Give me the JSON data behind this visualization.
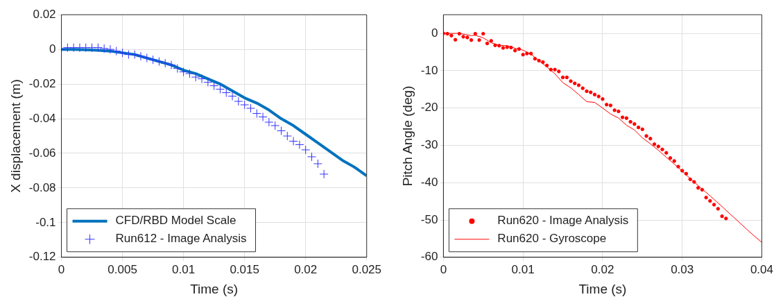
{
  "chart_data": [
    {
      "type": "line",
      "xlabel": "Time (s)",
      "ylabel": "X displacement (m)",
      "xlim": [
        0,
        0.025
      ],
      "xticks": [
        0,
        0.005,
        0.01,
        0.015,
        0.02,
        0.025
      ],
      "ylim": [
        -0.12,
        0.02
      ],
      "yticks": [
        -0.12,
        -0.1,
        -0.08,
        -0.06,
        -0.04,
        -0.02,
        0,
        0.02
      ],
      "grid": true,
      "legend": "bottom left",
      "series": [
        {
          "name": "CFD/RBD Model Scale",
          "color": "#0072bd",
          "marker": "none",
          "line_style": "solid",
          "x": [
            0,
            0.001,
            0.002,
            0.003,
            0.004,
            0.005,
            0.006,
            0.007,
            0.008,
            0.009,
            0.01,
            0.011,
            0.012,
            0.013,
            0.014,
            0.015,
            0.016,
            0.017,
            0.018,
            0.019,
            0.02,
            0.021,
            0.022,
            0.023,
            0.024,
            0.025
          ],
          "values": [
            0,
            0,
            -0.0002,
            -0.0005,
            -0.001,
            -0.002,
            -0.003,
            -0.005,
            -0.007,
            -0.009,
            -0.012,
            -0.014,
            -0.017,
            -0.02,
            -0.024,
            -0.028,
            -0.031,
            -0.035,
            -0.04,
            -0.044,
            -0.049,
            -0.054,
            -0.059,
            -0.064,
            -0.068,
            -0.073
          ]
        },
        {
          "name": "Run612 - Image Analysis",
          "type": "scatter",
          "color": "#3333ff",
          "marker": "cross",
          "x": [
            0,
            0.0005,
            0.001,
            0.0015,
            0.002,
            0.0025,
            0.003,
            0.0035,
            0.004,
            0.0045,
            0.005,
            0.0055,
            0.006,
            0.0065,
            0.007,
            0.0075,
            0.008,
            0.0085,
            0.009,
            0.0095,
            0.01,
            0.0105,
            0.011,
            0.0115,
            0.012,
            0.0125,
            0.013,
            0.0135,
            0.014,
            0.0145,
            0.015,
            0.0155,
            0.016,
            0.0165,
            0.017,
            0.0175,
            0.018,
            0.0185,
            0.019,
            0.0195,
            0.02,
            0.0205,
            0.021,
            0.0215
          ],
          "values": [
            0,
            0.001,
            0.001,
            0.001,
            0.001,
            0.001,
            0.001,
            0.0005,
            0,
            -0.001,
            -0.002,
            -0.003,
            -0.003,
            -0.004,
            -0.005,
            -0.006,
            -0.007,
            -0.008,
            -0.009,
            -0.011,
            -0.013,
            -0.014,
            -0.016,
            -0.017,
            -0.019,
            -0.021,
            -0.023,
            -0.025,
            -0.027,
            -0.03,
            -0.032,
            -0.034,
            -0.037,
            -0.039,
            -0.042,
            -0.044,
            -0.047,
            -0.05,
            -0.053,
            -0.055,
            -0.058,
            -0.062,
            -0.066,
            -0.072
          ]
        }
      ]
    },
    {
      "type": "scatter",
      "xlabel": "Time (s)",
      "ylabel": "Pitch Angle (deg)",
      "xlim": [
        0,
        0.04
      ],
      "xticks": [
        0,
        0.01,
        0.02,
        0.03,
        0.04
      ],
      "ylim": [
        -60,
        5
      ],
      "yticks": [
        -60,
        -50,
        -40,
        -30,
        -20,
        -10,
        0
      ],
      "grid": true,
      "legend": "bottom left",
      "series": [
        {
          "name": "Run620 - Image Analysis",
          "color": "#ff0000",
          "marker": "circle",
          "x": [
            0,
            0.0005,
            0.001,
            0.0015,
            0.002,
            0.0025,
            0.003,
            0.0035,
            0.004,
            0.0045,
            0.005,
            0.0055,
            0.006,
            0.0065,
            0.007,
            0.0075,
            0.008,
            0.0085,
            0.009,
            0.0095,
            0.01,
            0.0105,
            0.011,
            0.0115,
            0.012,
            0.0125,
            0.013,
            0.0135,
            0.014,
            0.0145,
            0.015,
            0.0155,
            0.016,
            0.0165,
            0.017,
            0.0175,
            0.018,
            0.0185,
            0.019,
            0.0195,
            0.02,
            0.0205,
            0.021,
            0.0215,
            0.022,
            0.0225,
            0.023,
            0.0235,
            0.024,
            0.0245,
            0.025,
            0.0255,
            0.026,
            0.0265,
            0.027,
            0.0275,
            0.028,
            0.0285,
            0.029,
            0.0295,
            0.03,
            0.0305,
            0.031,
            0.0315,
            0.032,
            0.0325,
            0.033,
            0.0335,
            0.034,
            0.0345,
            0.035,
            0.0355
          ],
          "values": [
            0,
            -0.1,
            -0.6,
            -1.7,
            -0.1,
            -0.9,
            -1.1,
            -1.8,
            -0.1,
            -1.8,
            -0.1,
            -2.7,
            -2,
            -3.2,
            -3.3,
            -3.9,
            -3.7,
            -3.8,
            -4.6,
            -4.2,
            -5.7,
            -5.4,
            -5.4,
            -6.8,
            -7.3,
            -7.7,
            -8.6,
            -9.7,
            -9.7,
            -10.2,
            -11.8,
            -11.8,
            -12.8,
            -13.4,
            -13.9,
            -14.7,
            -15.5,
            -15.8,
            -16.4,
            -16.9,
            -17.6,
            -19.1,
            -19.3,
            -20.6,
            -20.9,
            -22.5,
            -22.7,
            -23.7,
            -24.3,
            -25.2,
            -25.7,
            -27.5,
            -28.2,
            -29.7,
            -30.3,
            -31.1,
            -32,
            -33.4,
            -34.2,
            -35.7,
            -36.8,
            -37.6,
            -39.1,
            -39.8,
            -41.4,
            -41.9,
            -44,
            -44.9,
            -45.9,
            -47,
            -49,
            -49.6
          ]
        },
        {
          "name": "Run620 - Gyroscope",
          "type": "line",
          "color": "#ff0000",
          "marker": "none",
          "line_style": "solid",
          "x": [
            0,
            0.002,
            0.0035,
            0.004,
            0.005,
            0.006,
            0.007,
            0.008,
            0.009,
            0.01,
            0.011,
            0.012,
            0.013,
            0.014,
            0.015,
            0.016,
            0.017,
            0.018,
            0.019,
            0.02,
            0.021,
            0.022,
            0.023,
            0.024,
            0.025,
            0.026,
            0.027,
            0.028,
            0.029,
            0.03,
            0.031,
            0.032,
            0.033,
            0.034,
            0.035,
            0.036,
            0.037,
            0.038,
            0.039,
            0.04
          ],
          "values": [
            0,
            0,
            -0.6,
            -0.5,
            -1.2,
            -2.5,
            -3.2,
            -3.3,
            -4,
            -4.5,
            -5.6,
            -7.3,
            -9,
            -10.8,
            -13.2,
            -14.6,
            -16.4,
            -18.3,
            -18.5,
            -20,
            -21.6,
            -22.7,
            -24.6,
            -25.9,
            -28,
            -29.6,
            -31.3,
            -33.2,
            -35,
            -36.9,
            -38.9,
            -40.8,
            -42.6,
            -44.5,
            -46.4,
            -48.4,
            -50.3,
            -52.3,
            -54.2,
            -56
          ]
        }
      ]
    }
  ]
}
